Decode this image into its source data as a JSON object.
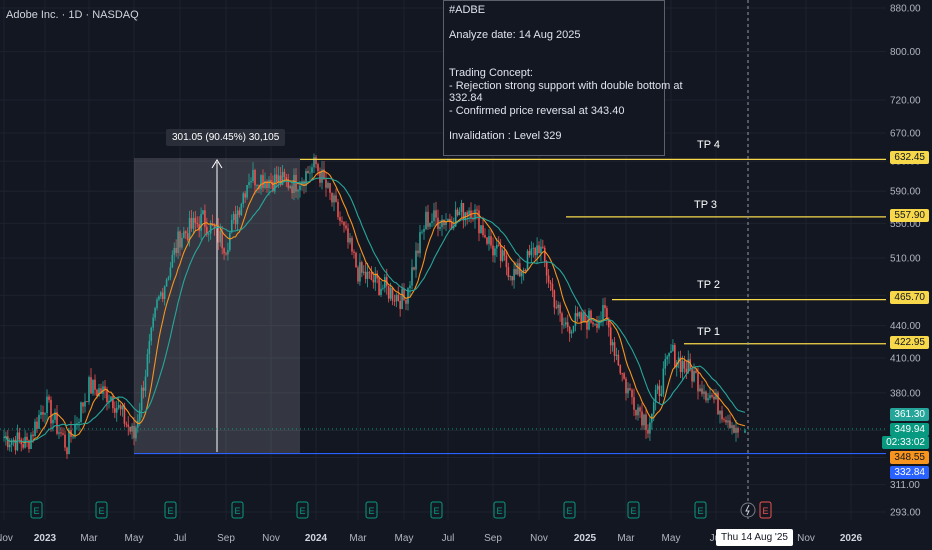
{
  "symbol": {
    "title": "Adobe Inc. · 1D · NASDAQ"
  },
  "note": {
    "lines": [
      "#ADBE",
      "",
      "Analyze date: 14 Aug 2025",
      "",
      "",
      "Trading Concept:",
      "- Rejection strong support with double bottom at",
      "332.84",
      "- Confirmed price reversal at 343.40",
      "",
      "Invalidation : Level 329"
    ]
  },
  "range_measure": {
    "label": "301.05 (90.45%) 30,105"
  },
  "levels": [
    {
      "name": "TP 4",
      "price": 632.45,
      "tag": "632.45",
      "color": "#f7d84a"
    },
    {
      "name": "TP 3",
      "price": 557.9,
      "tag": "557.90",
      "color": "#f7d84a"
    },
    {
      "name": "TP 2",
      "price": 465.7,
      "tag": "465.70",
      "color": "#f7d84a"
    },
    {
      "name": "TP 1",
      "price": 422.95,
      "tag": "422.95",
      "color": "#f7d84a"
    },
    {
      "name": "",
      "price": 332.84,
      "tag": "332.84",
      "color": "#2962ff"
    }
  ],
  "price_tags": {
    "high": {
      "text": "361.30",
      "bg": "#26a69a"
    },
    "last": {
      "text": "349.94",
      "bg": "#089981"
    },
    "timer": {
      "text": "02:33:02",
      "bg": "#089981"
    },
    "low": {
      "text": "348.55",
      "bg": "#f7941d"
    },
    "support": {
      "text": "332.84",
      "bg": "#2962ff"
    }
  },
  "date_tag": "Thu 14 Aug '25",
  "earnings_marker": "E",
  "chart_data": {
    "type": "candlestick",
    "title": "Adobe Inc. · 1D · NASDAQ",
    "y_axis": {
      "scale": "log",
      "ticks": [
        880,
        800,
        720,
        670,
        630,
        590,
        550,
        510,
        470,
        440,
        410,
        380,
        350,
        330,
        311,
        293
      ]
    },
    "x_axis": {
      "ticks": [
        "Nov",
        "2023",
        "Mar",
        "May",
        "Jul",
        "Sep",
        "Nov",
        "2024",
        "Mar",
        "May",
        "Jul",
        "Sep",
        "Nov",
        "2025",
        "Mar",
        "May",
        "Jul",
        "Nov",
        "2026"
      ]
    },
    "price_path": {
      "dates": [
        "Nov 2022",
        "Dec 2022",
        "Jan 2023",
        "Feb 2023",
        "Mar 2023",
        "Apr 2023",
        "May 2023",
        "Jun 2023",
        "Jul 2023",
        "Aug 2023",
        "Sep 2023",
        "Oct 2023",
        "Nov 2023",
        "Dec 2023",
        "Jan 2024",
        "Feb 2024",
        "Mar 2024",
        "Apr 2024",
        "May 2024",
        "Jun 2024",
        "Jul 2024",
        "Aug 2024",
        "Sep 2024",
        "Oct 2024",
        "Nov 2024",
        "Dec 2024",
        "Jan 2025",
        "Feb 2025",
        "Mar 2025",
        "Apr 2025",
        "May 2025",
        "Jun 2025",
        "Jul 2025",
        "Aug 2025"
      ],
      "close": [
        345,
        340,
        372,
        338,
        385,
        378,
        345,
        460,
        535,
        555,
        525,
        610,
        605,
        600,
        625,
        560,
        495,
        480,
        465,
        555,
        555,
        570,
        520,
        490,
        525,
        440,
        445,
        450,
        385,
        355,
        415,
        395,
        372,
        349.94
      ]
    },
    "rally_measure": {
      "from": 332.84,
      "to": 633.89,
      "change": "301.05 (90.45%)",
      "bars": "30,105"
    }
  }
}
